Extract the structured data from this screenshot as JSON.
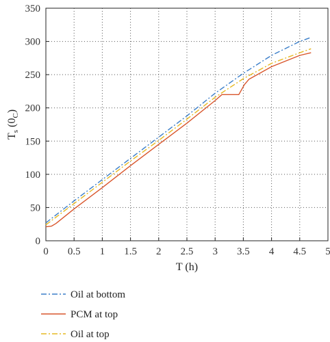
{
  "chart_data": {
    "type": "line",
    "xlabel": "T (h)",
    "ylabel_main": "T",
    "ylabel_sub": "s",
    "ylabel_rest": " (0",
    "ylabel_sub2": "C",
    "ylabel_end": ")",
    "xlim": [
      0,
      5
    ],
    "ylim": [
      0,
      350
    ],
    "x_ticks": [
      0,
      0.5,
      1,
      1.5,
      2,
      2.5,
      3,
      3.5,
      4,
      4.5,
      5
    ],
    "y_ticks": [
      0,
      50,
      100,
      150,
      200,
      250,
      300,
      350
    ],
    "grid": true,
    "legend_position": "below-left",
    "series": [
      {
        "name": "Oil at bottom",
        "color": "#3a7ec9",
        "dash": "dash-dot",
        "x": [
          0,
          0.5,
          1,
          1.5,
          2,
          2.5,
          3,
          3.5,
          4,
          4.5,
          4.7
        ],
        "y": [
          27,
          60,
          92,
          124,
          156,
          188,
          222,
          252,
          279,
          300,
          306
        ]
      },
      {
        "name": "PCM at top",
        "color": "#d9552b",
        "dash": "solid",
        "x": [
          0,
          0.1,
          0.18,
          0.5,
          1,
          1.5,
          2,
          2.5,
          3,
          3.12,
          3.42,
          3.52,
          3.6,
          4,
          4.5,
          4.7
        ],
        "y": [
          21,
          22,
          26,
          48,
          80,
          113,
          145,
          177,
          211,
          220,
          220,
          235,
          243,
          262,
          279,
          283
        ]
      },
      {
        "name": "Oil at top",
        "color": "#e6b820",
        "dash": "dash-dot",
        "x": [
          0,
          0.5,
          1,
          1.5,
          2,
          2.5,
          3,
          3.5,
          4,
          4.5,
          4.7
        ],
        "y": [
          24,
          56,
          88,
          120,
          151,
          183,
          216,
          244,
          267,
          283,
          289
        ]
      }
    ]
  }
}
